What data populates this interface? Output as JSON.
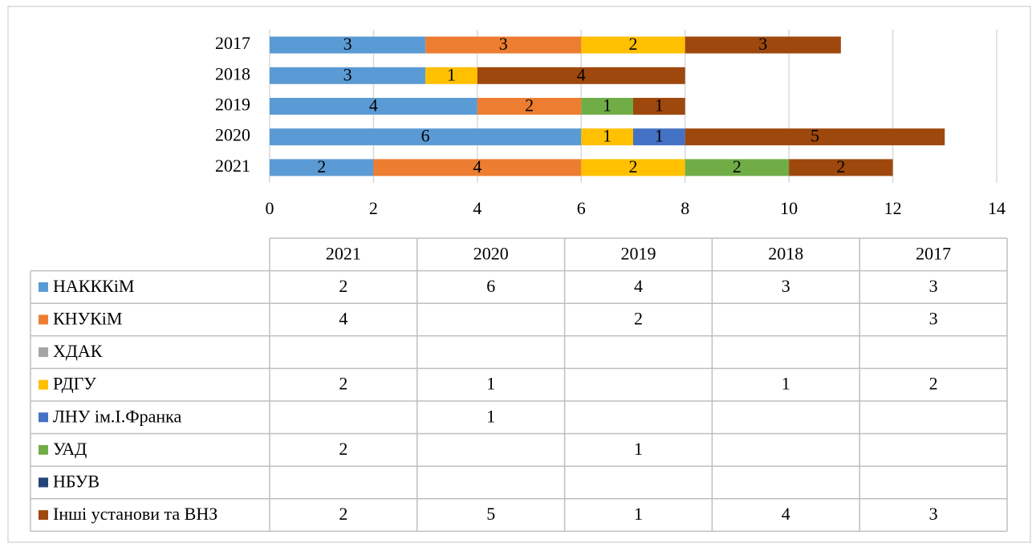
{
  "chart_data": {
    "type": "stacked_bar_horizontal",
    "categories": [
      "2021",
      "2020",
      "2019",
      "2018",
      "2017"
    ],
    "series": [
      {
        "name": "НАКККіМ",
        "color": "#5b9bd5",
        "values": [
          2,
          6,
          4,
          3,
          3
        ]
      },
      {
        "name": "КНУКіМ",
        "color": "#ed7d31",
        "values": [
          4,
          null,
          2,
          null,
          3
        ]
      },
      {
        "name": "ХДАК",
        "color": "#a5a5a5",
        "values": [
          null,
          null,
          null,
          null,
          null
        ]
      },
      {
        "name": "РДГУ",
        "color": "#ffc000",
        "values": [
          2,
          1,
          null,
          1,
          2
        ]
      },
      {
        "name": "ЛНУ ім.І.Франка",
        "color": "#4472c4",
        "values": [
          null,
          1,
          null,
          null,
          null
        ]
      },
      {
        "name": "УАД",
        "color": "#70ad47",
        "values": [
          2,
          null,
          1,
          null,
          null
        ]
      },
      {
        "name": "НБУВ",
        "color": "#264478",
        "values": [
          null,
          null,
          null,
          null,
          null
        ]
      },
      {
        "name": "Інші установи та ВНЗ",
        "color": "#9e480e",
        "values": [
          2,
          5,
          1,
          4,
          3
        ]
      }
    ],
    "xlim": [
      0,
      14
    ],
    "xticks": [
      0,
      2,
      4,
      6,
      8,
      10,
      12,
      14
    ],
    "grid": true,
    "data_table": true
  }
}
